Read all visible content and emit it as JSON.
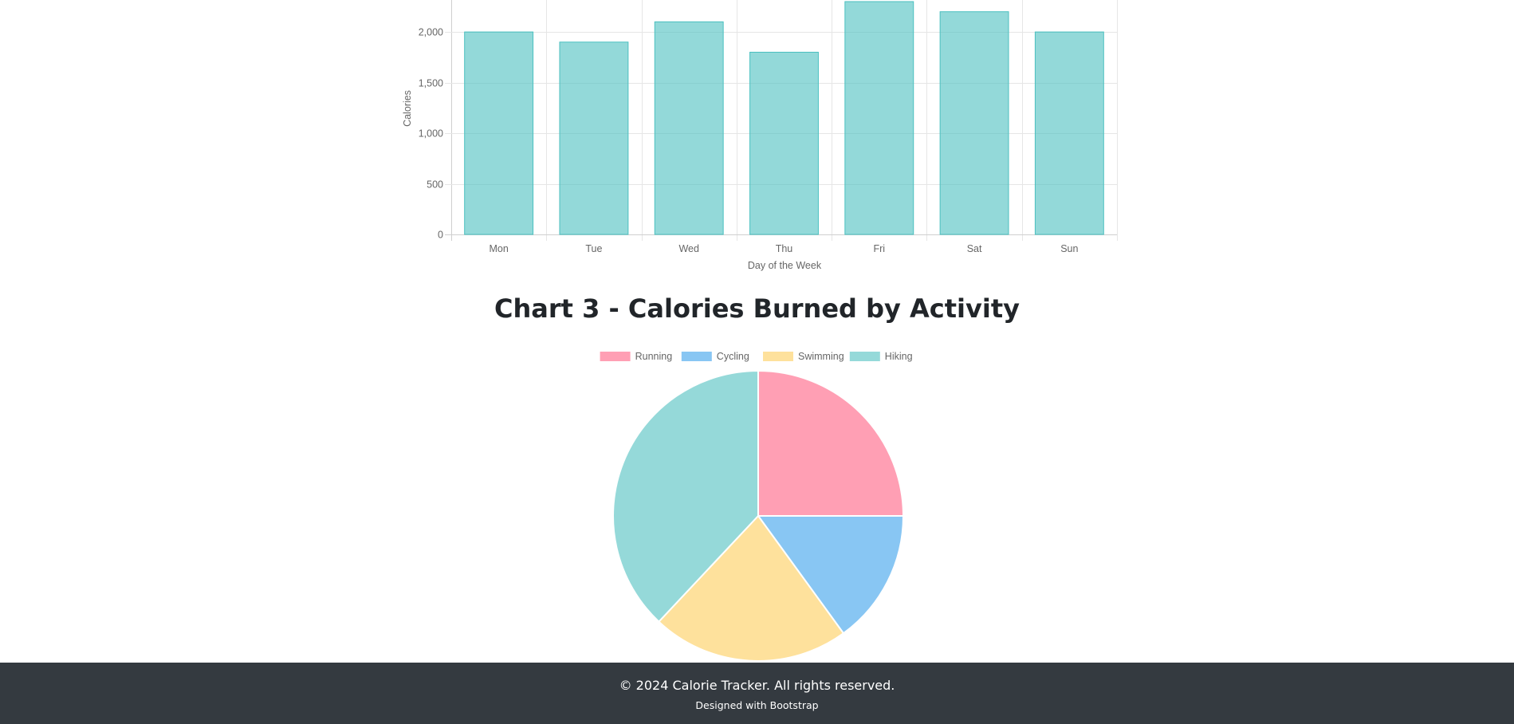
{
  "chart_data": [
    {
      "type": "bar",
      "title": "",
      "categories": [
        "Mon",
        "Tue",
        "Wed",
        "Thu",
        "Fri",
        "Sat",
        "Sun"
      ],
      "values": [
        2000,
        1900,
        2100,
        1800,
        2300,
        2200,
        2000
      ],
      "xlabel": "Day of the Week",
      "ylabel": "Calories",
      "ylim": [
        0,
        2300
      ],
      "yticks": [
        "0",
        "500",
        "1,000",
        "1,500",
        "2,000"
      ],
      "grid": true,
      "color": "#4bc0c0"
    },
    {
      "type": "pie",
      "title": "Chart 3 - Calories Burned by Activity",
      "labels": [
        "Running",
        "Cycling",
        "Swimming",
        "Hiking"
      ],
      "values": [
        25,
        15,
        22,
        38
      ],
      "colors": [
        "#ff9fb4",
        "#88c6f3",
        "#fee19c",
        "#95d9d9"
      ],
      "legend": "top"
    }
  ],
  "footer": {
    "copyright": "© 2024 Calorie Tracker. All rights reserved.",
    "designed": "Designed with Bootstrap"
  }
}
